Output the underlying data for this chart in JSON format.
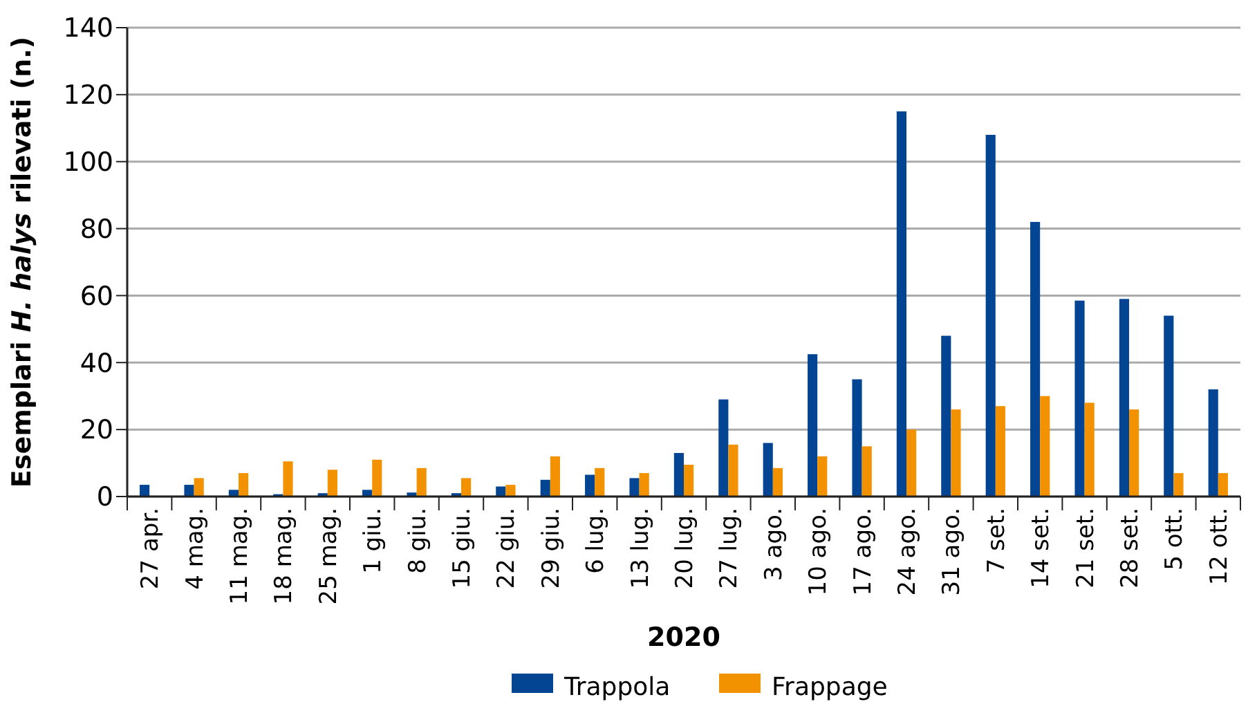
{
  "chart_data": {
    "type": "bar",
    "xlabel": "2020",
    "ylabel": "Esemplari H. halys rilevati (n.)",
    "categories": [
      "27 apr.",
      "4 mag.",
      "11 mag.",
      "18 mag.",
      "25 mag.",
      "1 giu.",
      "8 giu.",
      "15 giu.",
      "22 giu.",
      "29 giu.",
      "6 lug.",
      "13 lug.",
      "20 lug.",
      "27 lug.",
      "3 ago.",
      "10 ago.",
      "17 ago.",
      "24 ago.",
      "31 ago.",
      "7 set.",
      "14 set.",
      "21 set.",
      "28 set.",
      "5 ott.",
      "12 ott."
    ],
    "series": [
      {
        "name": "Trappola",
        "color": "#034592",
        "values": [
          3.5,
          3.5,
          2,
          0.7,
          1,
          2,
          1.2,
          1,
          3,
          5,
          6.5,
          5.5,
          13,
          29,
          16,
          42.5,
          35,
          115,
          48,
          108,
          82,
          58.5,
          59,
          54,
          32
        ]
      },
      {
        "name": "Frappage",
        "color": "#f39200",
        "values": [
          null,
          5.5,
          7,
          10.5,
          8,
          11,
          8.5,
          5.5,
          3.5,
          12,
          8.5,
          7,
          9.5,
          15.5,
          8.5,
          12,
          15,
          20,
          26,
          27,
          30,
          28,
          26,
          7,
          7
        ]
      }
    ],
    "ylim": [
      0,
      140
    ],
    "yticks": [
      0,
      20,
      40,
      60,
      80,
      100,
      120,
      140
    ],
    "grid": "y",
    "legend": "bottom"
  }
}
